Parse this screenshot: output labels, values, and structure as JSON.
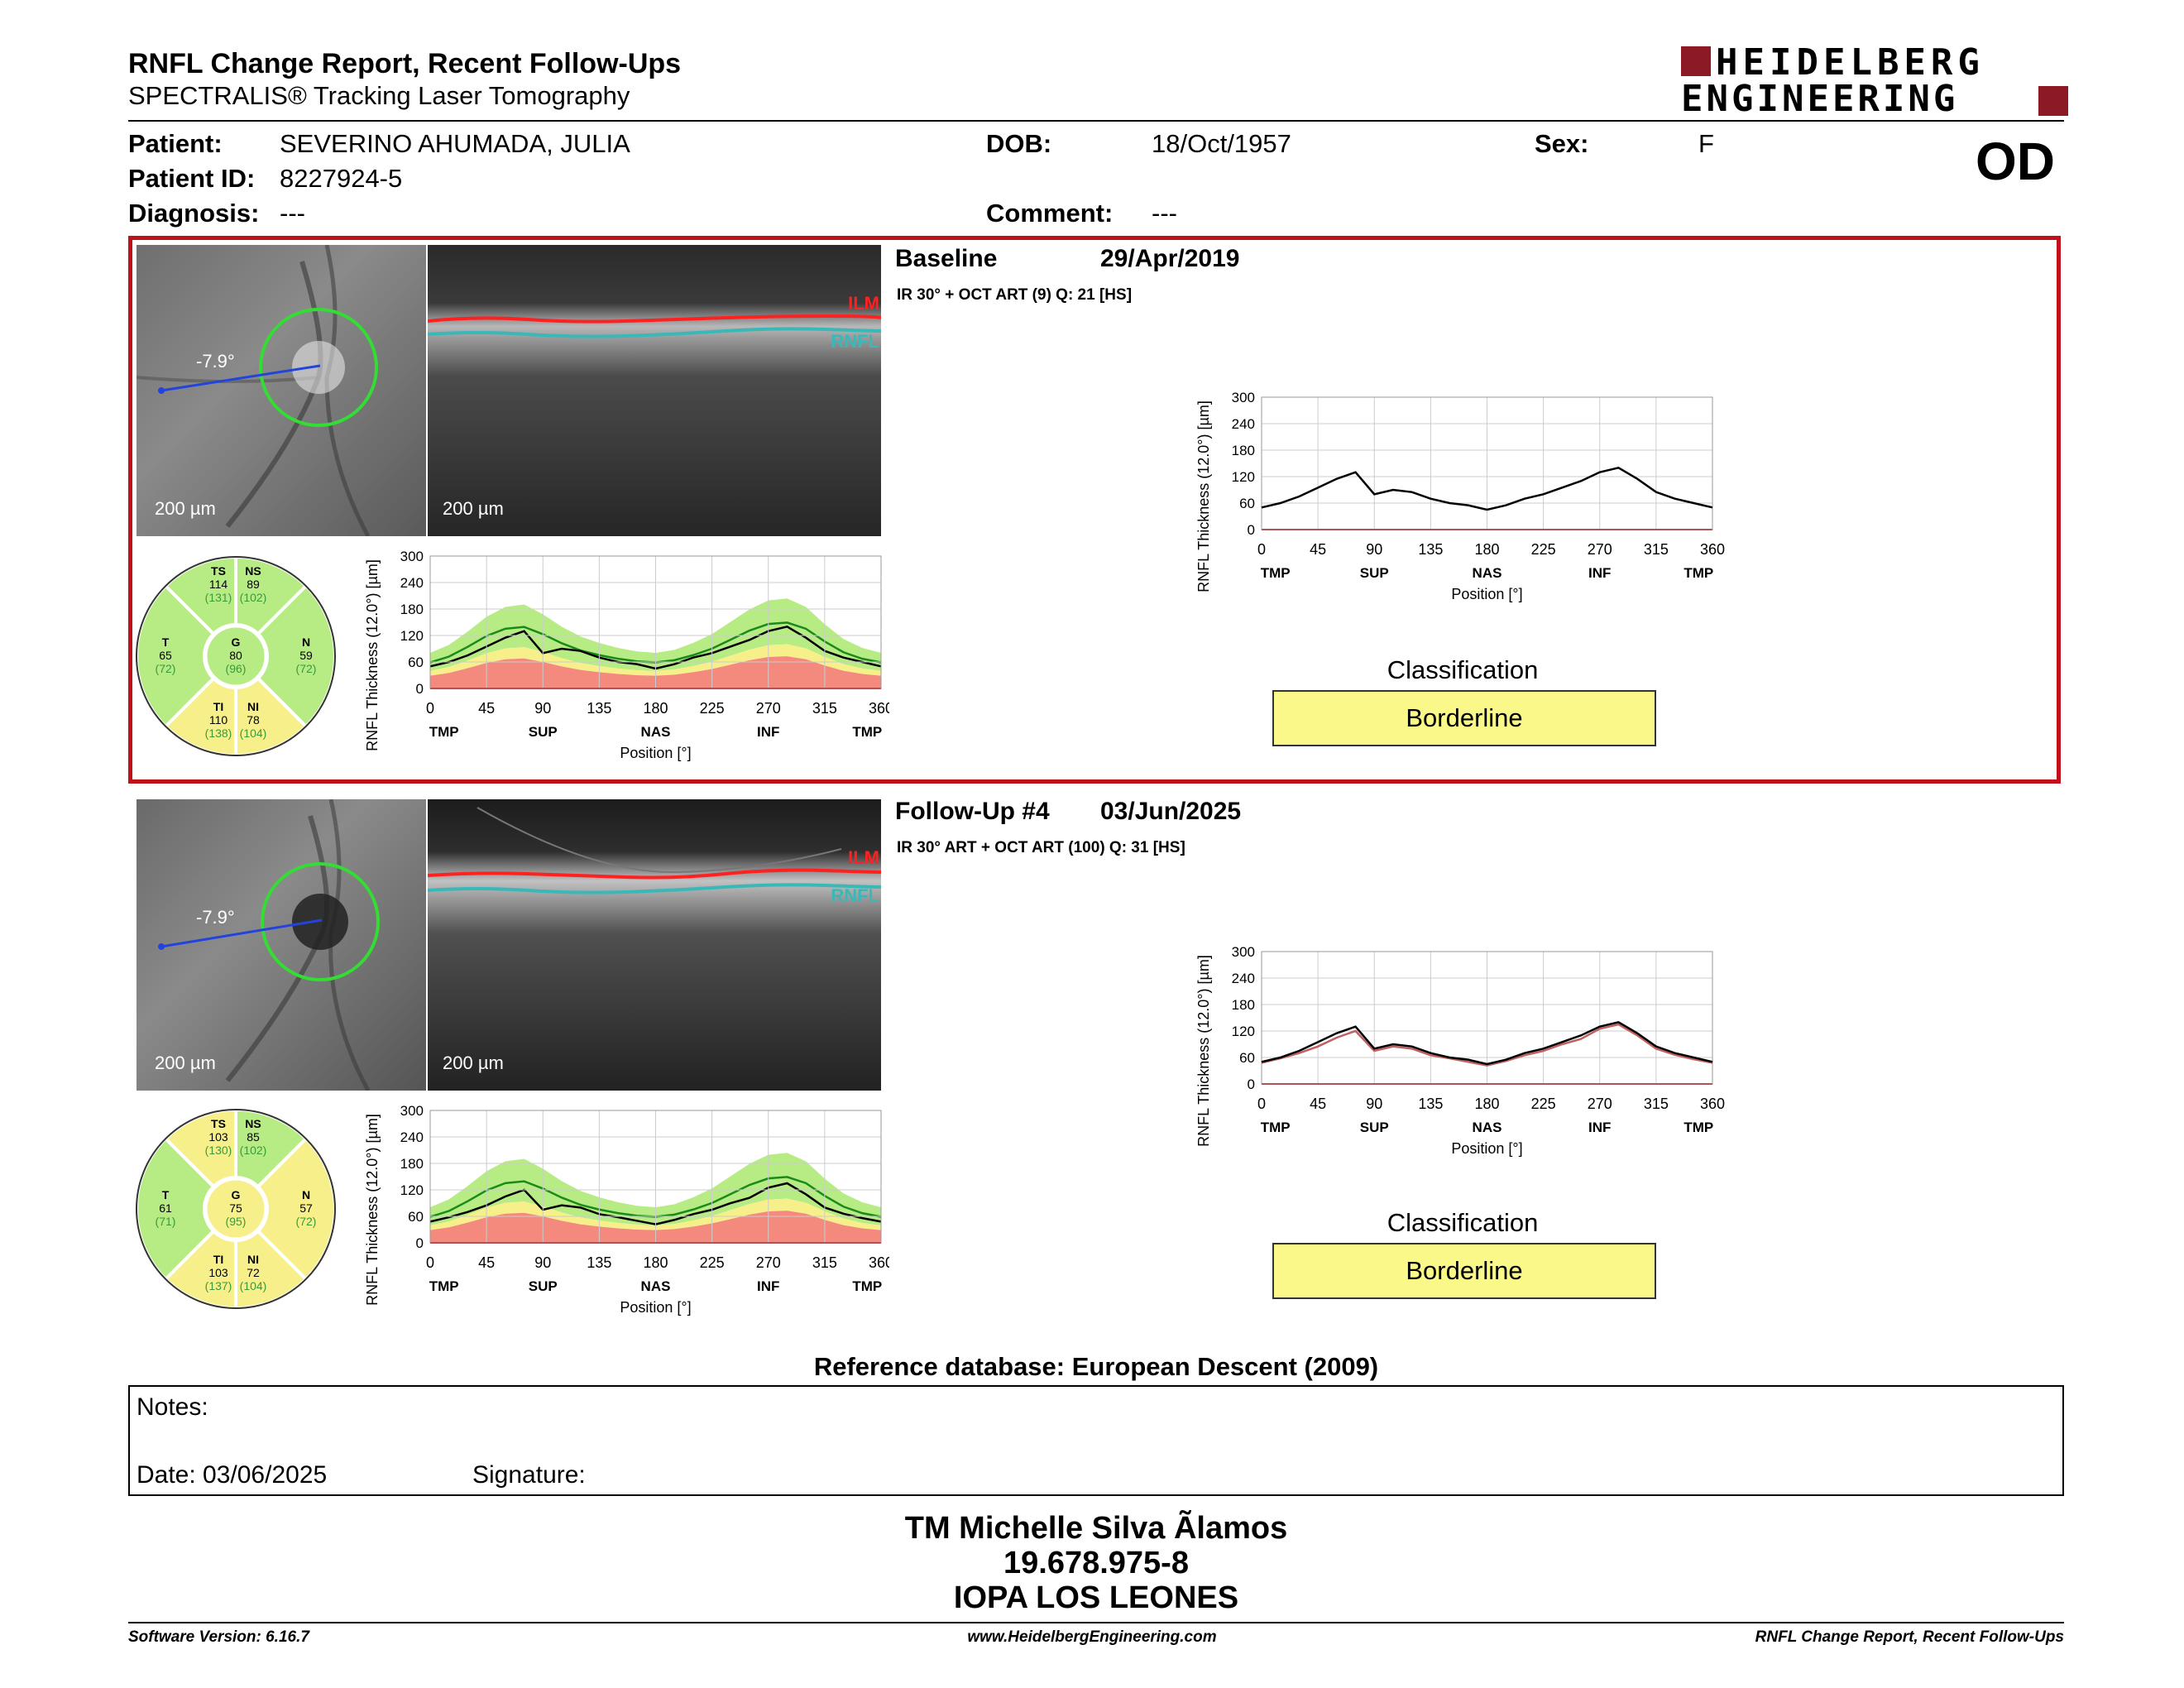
{
  "header": {
    "title": "RNFL Change Report, Recent Follow-Ups",
    "subtitle": "SPECTRALIS® Tracking Laser Tomography",
    "brand_line1": "HEIDELBERG",
    "brand_line2": "ENGINEERING",
    "eye": "OD"
  },
  "patient": {
    "name_label": "Patient:",
    "name": "SEVERINO AHUMADA, JULIA",
    "id_label": "Patient ID:",
    "id": "8227924-5",
    "diagnosis_label": "Diagnosis:",
    "diagnosis": "---",
    "dob_label": "DOB:",
    "dob": "18/Oct/1957",
    "comment_label": "Comment:",
    "comment": "---",
    "sex_label": "Sex:",
    "sex": "F"
  },
  "colors": {
    "frame_red": "#c0101a",
    "brand_red": "#8b1a24",
    "normal_green": "#b7ec84",
    "borderline_yellow": "#f7f08a",
    "outside_red": "#f48a7e",
    "ilm": "#ff2020",
    "rnfl": "#3ab8b8",
    "scan_line": "#2244dd",
    "circle": "#33dd33"
  },
  "common": {
    "scale_label": "200 µm",
    "ilm_label": "ILM",
    "rnfl_label": "RNFL",
    "angle_label": "-7.9°",
    "classification_title": "Classification",
    "axis": {
      "ylabel": "RNFL Thickness (12.0°) [µm]",
      "xlabel": "Position [°]",
      "yticks": [
        "300",
        "240",
        "180",
        "120",
        "60",
        "0"
      ],
      "xticks": [
        "0",
        "45",
        "90",
        "135",
        "180",
        "225",
        "270",
        "315",
        "360"
      ],
      "sectors": [
        "TMP",
        "SUP",
        "NAS",
        "INF",
        "TMP"
      ]
    }
  },
  "scans": [
    {
      "title": "Baseline",
      "date": "29/Apr/2019",
      "protocol": "IR 30° + OCT ART (9) Q: 21 [HS]",
      "classification": "Borderline",
      "sectors": {
        "TS": {
          "label": "TS",
          "value": "114",
          "ref": "(131)"
        },
        "NS": {
          "label": "NS",
          "value": "89",
          "ref": "(102)"
        },
        "T": {
          "label": "T",
          "value": "65",
          "ref": "(72)"
        },
        "G": {
          "label": "G",
          "value": "80",
          "ref": "(96)"
        },
        "N": {
          "label": "N",
          "value": "59",
          "ref": "(72)"
        },
        "TI": {
          "label": "TI",
          "value": "110",
          "ref": "(138)"
        },
        "NI": {
          "label": "NI",
          "value": "78",
          "ref": "(104)"
        }
      }
    },
    {
      "title": "Follow-Up #4",
      "date": "03/Jun/2025",
      "protocol": "IR 30° ART + OCT ART (100) Q: 31 [HS]",
      "classification": "Borderline",
      "sectors": {
        "TS": {
          "label": "TS",
          "value": "103",
          "ref": "(130)"
        },
        "NS": {
          "label": "NS",
          "value": "85",
          "ref": "(102)"
        },
        "T": {
          "label": "T",
          "value": "61",
          "ref": "(71)"
        },
        "G": {
          "label": "G",
          "value": "75",
          "ref": "(95)"
        },
        "N": {
          "label": "N",
          "value": "57",
          "ref": "(72)"
        },
        "TI": {
          "label": "TI",
          "value": "103",
          "ref": "(137)"
        },
        "NI": {
          "label": "NI",
          "value": "72",
          "ref": "(104)"
        }
      }
    }
  ],
  "chart_data": [
    {
      "type": "line",
      "ylabel": "RNFL Thickness (12.0°) [µm]",
      "xlabel": "Position [°]",
      "xlim": [
        0,
        360
      ],
      "ylim": [
        0,
        300
      ],
      "x": [
        0,
        15,
        30,
        45,
        60,
        75,
        90,
        105,
        120,
        135,
        150,
        165,
        180,
        195,
        210,
        225,
        240,
        255,
        270,
        285,
        300,
        315,
        330,
        345,
        360
      ],
      "series": [
        {
          "values": [
            50,
            60,
            75,
            95,
            115,
            130,
            80,
            90,
            85,
            70,
            60,
            55,
            45,
            55,
            70,
            80,
            95,
            110,
            130,
            140,
            115,
            85,
            70,
            60,
            50
          ]
        }
      ]
    },
    {
      "type": "line",
      "ylabel": "RNFL Thickness (12.0°) [µm]",
      "xlabel": "Position [°]",
      "xlim": [
        0,
        360
      ],
      "ylim": [
        0,
        300
      ],
      "x": [
        0,
        15,
        30,
        45,
        60,
        75,
        90,
        105,
        120,
        135,
        150,
        165,
        180,
        195,
        210,
        225,
        240,
        255,
        270,
        285,
        300,
        315,
        330,
        345,
        360
      ],
      "series": [
        {
          "values": [
            48,
            58,
            70,
            85,
            105,
            120,
            75,
            85,
            80,
            65,
            58,
            50,
            42,
            52,
            65,
            75,
            90,
            102,
            125,
            135,
            110,
            80,
            66,
            56,
            48
          ]
        },
        {
          "values": [
            50,
            60,
            75,
            95,
            115,
            130,
            80,
            90,
            85,
            70,
            60,
            55,
            45,
            55,
            70,
            80,
            95,
            110,
            130,
            140,
            115,
            85,
            70,
            60,
            50
          ]
        }
      ]
    },
    {
      "type": "area",
      "ylabel": "RNFL Thickness (12.0°) [µm]",
      "xlabel": "Position [°]",
      "xlim": [
        0,
        360
      ],
      "ylim": [
        0,
        300
      ],
      "x": [
        0,
        15,
        30,
        45,
        60,
        75,
        90,
        105,
        120,
        135,
        150,
        165,
        180,
        195,
        210,
        225,
        240,
        255,
        270,
        285,
        300,
        315,
        330,
        345,
        360
      ],
      "series": [
        {
          "values": [
            50,
            60,
            75,
            95,
            115,
            130,
            80,
            90,
            85,
            70,
            60,
            55,
            45,
            55,
            70,
            80,
            95,
            110,
            130,
            140,
            115,
            85,
            70,
            60,
            50
          ]
        },
        {
          "values": [
            72,
            88,
            115,
            145,
            165,
            170,
            150,
            125,
            105,
            92,
            82,
            75,
            72,
            78,
            92,
            110,
            135,
            160,
            178,
            182,
            165,
            130,
            100,
            82,
            72
          ]
        }
      ]
    },
    {
      "type": "area",
      "ylabel": "RNFL Thickness (12.0°) [µm]",
      "xlabel": "Position [°]",
      "xlim": [
        0,
        360
      ],
      "ylim": [
        0,
        300
      ],
      "x": [
        0,
        15,
        30,
        45,
        60,
        75,
        90,
        105,
        120,
        135,
        150,
        165,
        180,
        195,
        210,
        225,
        240,
        255,
        270,
        285,
        300,
        315,
        330,
        345,
        360
      ],
      "series": [
        {
          "values": [
            48,
            58,
            70,
            85,
            105,
            120,
            75,
            85,
            80,
            65,
            58,
            50,
            42,
            52,
            65,
            75,
            90,
            102,
            125,
            135,
            110,
            80,
            66,
            56,
            48
          ]
        },
        {
          "values": [
            72,
            88,
            115,
            145,
            165,
            170,
            150,
            125,
            105,
            92,
            82,
            75,
            72,
            78,
            92,
            110,
            135,
            160,
            178,
            182,
            165,
            130,
            100,
            82,
            72
          ]
        }
      ]
    }
  ],
  "reference": "Reference database: European Descent (2009)",
  "notes": {
    "label": "Notes:",
    "date": "Date: 03/06/2025",
    "signature_label": "Signature:"
  },
  "signer": {
    "name": "TM Michelle Silva Ãlamos",
    "id": "19.678.975-8",
    "org": "IOPA LOS LEONES"
  },
  "footer": {
    "left": "Software Version: 6.16.7",
    "center": "www.HeidelbergEngineering.com",
    "right": "RNFL Change Report, Recent Follow-Ups"
  }
}
